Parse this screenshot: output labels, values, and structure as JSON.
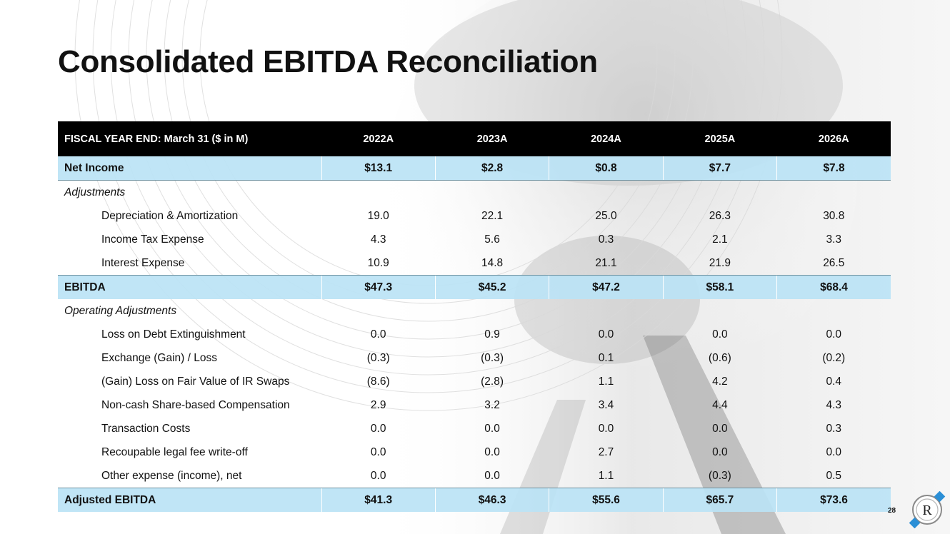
{
  "title": "Consolidated EBITDA Reconciliation",
  "page_number": "28",
  "logo_letter": "R",
  "table": {
    "header_label": "FISCAL YEAR END: March 31 ($ in M)",
    "years": [
      "2022A",
      "2023A",
      "2024A",
      "2025A",
      "2026A"
    ],
    "rows": [
      {
        "kind": "total-first",
        "label": "Net Income",
        "values": [
          "$13.1",
          "$2.8",
          "$0.8",
          "$7.7",
          "$7.8"
        ]
      },
      {
        "kind": "section",
        "label": "Adjustments",
        "values": []
      },
      {
        "kind": "item",
        "label": "Depreciation & Amortization",
        "values": [
          "19.0",
          "22.1",
          "25.0",
          "26.3",
          "30.8"
        ]
      },
      {
        "kind": "item",
        "label": "Income Tax Expense",
        "values": [
          "4.3",
          "5.6",
          "0.3",
          "2.1",
          "3.3"
        ]
      },
      {
        "kind": "item",
        "label": "Interest Expense",
        "values": [
          "10.9",
          "14.8",
          "21.1",
          "21.9",
          "26.5"
        ]
      },
      {
        "kind": "total",
        "label": "EBITDA",
        "values": [
          "$47.3",
          "$45.2",
          "$47.2",
          "$58.1",
          "$68.4"
        ]
      },
      {
        "kind": "section",
        "label": "Operating Adjustments",
        "values": []
      },
      {
        "kind": "item",
        "label": "Loss on Debt Extinguishment",
        "values": [
          "0.0",
          "0.9",
          "0.0",
          "0.0",
          "0.0"
        ]
      },
      {
        "kind": "item",
        "label": "Exchange (Gain) / Loss",
        "values": [
          "(0.3)",
          "(0.3)",
          "0.1",
          "(0.6)",
          "(0.2)"
        ]
      },
      {
        "kind": "item",
        "label": "(Gain) Loss on Fair Value of IR Swaps",
        "values": [
          "(8.6)",
          "(2.8)",
          "1.1",
          "4.2",
          "0.4"
        ]
      },
      {
        "kind": "item",
        "label": "Non-cash Share-based Compensation",
        "values": [
          "2.9",
          "3.2",
          "3.4",
          "4.4",
          "4.3"
        ]
      },
      {
        "kind": "item",
        "label": "Transaction Costs",
        "values": [
          "0.0",
          "0.0",
          "0.0",
          "0.0",
          "0.3"
        ]
      },
      {
        "kind": "item",
        "label": "Recoupable legal fee write-off",
        "values": [
          "0.0",
          "0.0",
          "2.7",
          "0.0",
          "0.0"
        ]
      },
      {
        "kind": "item",
        "label": "Other expense (income), net",
        "values": [
          "0.0",
          "0.0",
          "1.1",
          "(0.3)",
          "0.5"
        ]
      },
      {
        "kind": "total",
        "label": "Adjusted EBITDA",
        "values": [
          "$41.3",
          "$46.3",
          "$55.6",
          "$65.7",
          "$73.6"
        ]
      }
    ]
  },
  "colors": {
    "header_bg": "#000000",
    "highlight_row": "#bbe3f5",
    "logo_accent": "#2b8fd6"
  }
}
